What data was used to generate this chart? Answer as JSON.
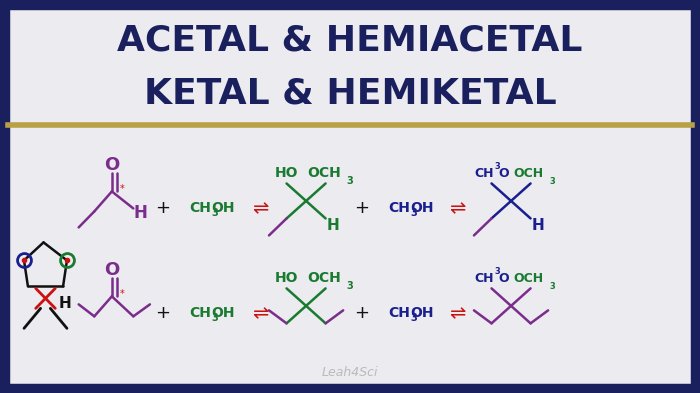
{
  "title_line1": "ACETAL & HEMIACETAL",
  "title_line2": "KETAL & HEMIKETAL",
  "title_color": "#1a1f5e",
  "border_color": "#1a1f5e",
  "gold_line_color": "#b8a045",
  "body_bg": "#ebebf0",
  "title_bg": "#ffffff",
  "watermark": "Leah4Sci",
  "watermark_color": "#bbbbbb",
  "purple": "#7B2D8B",
  "green": "#1a7a30",
  "blue": "#1a1f8e",
  "red": "#cc1111",
  "black": "#111111"
}
